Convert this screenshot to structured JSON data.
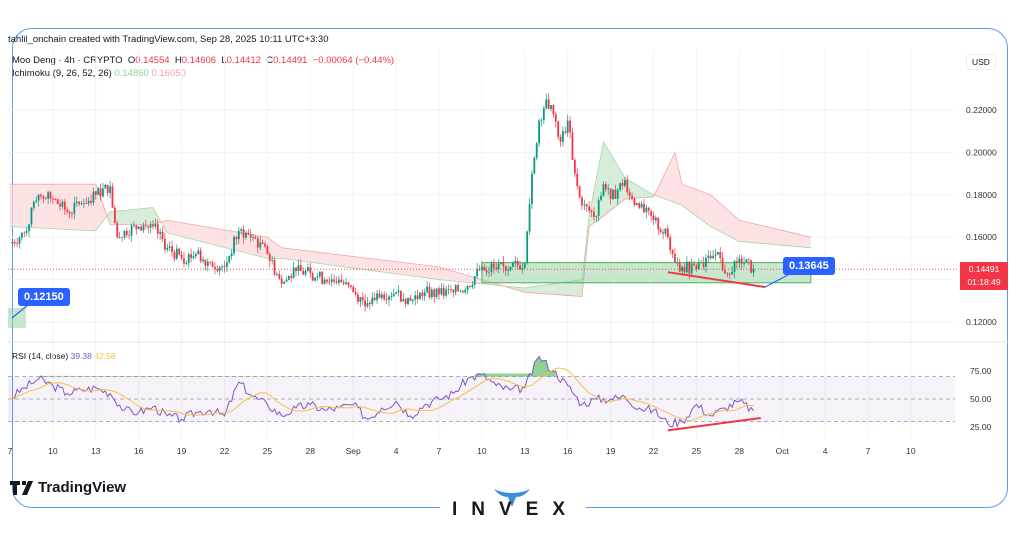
{
  "header": {
    "credit": "tahlil_onchain created with TradingView.com, Sep 28, 2025 10:11 UTC+3:30",
    "symbol": "Moo Deng · 4h · CRYPTO",
    "o_label": "O",
    "o": "0.14554",
    "h_label": "H",
    "h": "0.14606",
    "l_label": "L",
    "l": "0.14412",
    "c_label": "C",
    "c": "0.14491",
    "change": "−0.00064 (−0.44%)",
    "ichimoku": "Ichimoku (9, 26, 52, 26)",
    "ichimoku_v1": "0.14860",
    "ichimoku_v2": "0.16050",
    "rsi": "RSI (14, close)",
    "rsi_v1": "39.38",
    "rsi_v2": "42.58"
  },
  "axis": {
    "currency": "USD",
    "price_ticks": [
      "0.22000",
      "0.20000",
      "0.18000",
      "0.16000",
      "0.12000"
    ],
    "rsi_ticks": [
      "75.00",
      "50.00",
      "25.00"
    ],
    "last_price": "0.14491",
    "countdown": "01:18:49",
    "x_ticks": [
      "7",
      "10",
      "13",
      "16",
      "19",
      "22",
      "25",
      "28",
      "Sep",
      "4",
      "7",
      "10",
      "13",
      "16",
      "19",
      "22",
      "25",
      "28",
      "Oct",
      "4",
      "7",
      "10"
    ]
  },
  "callouts": {
    "left": "0.12150",
    "right": "0.13645"
  },
  "branding": {
    "tradingview": "TradingView",
    "invex": "INVEX"
  },
  "colors": {
    "up": "#089981",
    "down": "#f23645",
    "rsi": "#7e57c2",
    "rsi_ma": "#f5c242",
    "cloud_bull": "#c8e6c9",
    "cloud_bear": "#fcd6d9",
    "drawing": "#2962ff",
    "trendline": "#f23645",
    "zone": "#8fd19e"
  },
  "chart_data": [
    {
      "type": "candlestick",
      "title": "Moo Deng · 4h · CRYPTO",
      "ylim": [
        0.11,
        0.24
      ],
      "grid": true,
      "close_daily": [
        [
          "Aug 7",
          0.157
        ],
        [
          "Aug 8",
          0.162
        ],
        [
          "Aug 9",
          0.18
        ],
        [
          "Aug 10",
          0.178
        ],
        [
          "Aug 11",
          0.172
        ],
        [
          "Aug 12",
          0.176
        ],
        [
          "Aug 13",
          0.18
        ],
        [
          "Aug 14",
          0.184
        ],
        [
          "Aug 14.5",
          0.16
        ],
        [
          "Aug 15",
          0.163
        ],
        [
          "Aug 16",
          0.165
        ],
        [
          "Aug 17",
          0.165
        ],
        [
          "Aug 18",
          0.155
        ],
        [
          "Aug 19",
          0.15
        ],
        [
          "Aug 20",
          0.152
        ],
        [
          "Aug 21",
          0.148
        ],
        [
          "Aug 22",
          0.146
        ],
        [
          "Aug 23",
          0.163
        ],
        [
          "Aug 24",
          0.16
        ],
        [
          "Aug 25",
          0.152
        ],
        [
          "Aug 26",
          0.138
        ],
        [
          "Aug 27",
          0.144
        ],
        [
          "Aug 28",
          0.143
        ],
        [
          "Aug 29",
          0.14
        ],
        [
          "Aug 30",
          0.14
        ],
        [
          "Aug 31",
          0.134
        ],
        [
          "Sep 1",
          0.129
        ],
        [
          "Sep 2",
          0.133
        ],
        [
          "Sep 3",
          0.134
        ],
        [
          "Sep 4",
          0.13
        ],
        [
          "Sep 5",
          0.134
        ],
        [
          "Sep 6",
          0.133
        ],
        [
          "Sep 7",
          0.134
        ],
        [
          "Sep 8",
          0.137
        ],
        [
          "Sep 9",
          0.146
        ],
        [
          "Sep 10",
          0.145
        ],
        [
          "Sep 11",
          0.146
        ],
        [
          "Sep 12",
          0.148
        ],
        [
          "Sep 12.5",
          0.19
        ],
        [
          "Sep 13",
          0.215
        ],
        [
          "Sep 13.5",
          0.225
        ],
        [
          "Sep 14",
          0.218
        ],
        [
          "Sep 14.5",
          0.205
        ],
        [
          "Sep 15",
          0.215
        ],
        [
          "Sep 15.5",
          0.19
        ],
        [
          "Sep 16",
          0.175
        ],
        [
          "Sep 17",
          0.17
        ],
        [
          "Sep 17.5",
          0.185
        ],
        [
          "Sep 18",
          0.178
        ],
        [
          "Sep 19",
          0.187
        ],
        [
          "Sep 19.5",
          0.178
        ],
        [
          "Sep 20",
          0.174
        ],
        [
          "Sep 21",
          0.168
        ],
        [
          "Sep 22",
          0.16
        ],
        [
          "Sep 22.5",
          0.148
        ],
        [
          "Sep 23",
          0.146
        ],
        [
          "Sep 24",
          0.145
        ],
        [
          "Sep 25",
          0.15
        ],
        [
          "Sep 25.5",
          0.153
        ],
        [
          "Sep 26",
          0.143
        ],
        [
          "Sep 27",
          0.15
        ],
        [
          "Sep 28",
          0.1449
        ]
      ],
      "ichimoku_cloud": {
        "span_a": [
          [
            "Aug 7",
            0.165
          ],
          [
            "Aug 13",
            0.163
          ],
          [
            "Aug 14",
            0.172
          ],
          [
            "Aug 17",
            0.174
          ],
          [
            "Aug 18",
            0.162
          ],
          [
            "Aug 25",
            0.15
          ],
          [
            "Aug 26",
            0.15
          ],
          [
            "Sep 6",
            0.14
          ],
          [
            "Sep 12",
            0.136
          ],
          [
            "Sep 16",
            0.14
          ],
          [
            "Sep 16.5",
            0.17
          ],
          [
            "Sep 17.5",
            0.205
          ],
          [
            "Sep 19",
            0.188
          ],
          [
            "Sep 21",
            0.18
          ],
          [
            "Sep 23",
            0.175
          ],
          [
            "Sep 25",
            0.165
          ],
          [
            "Sep 27",
            0.158
          ],
          [
            "Oct 2",
            0.155
          ]
        ],
        "span_b": [
          [
            "Aug 7",
            0.185
          ],
          [
            "Aug 13",
            0.185
          ],
          [
            "Aug 14",
            0.166
          ],
          [
            "Aug 17",
            0.166
          ],
          [
            "Aug 18",
            0.168
          ],
          [
            "Aug 25",
            0.16
          ],
          [
            "Aug 26",
            0.155
          ],
          [
            "Sep 6",
            0.146
          ],
          [
            "Sep 12",
            0.134
          ],
          [
            "Sep 16",
            0.132
          ],
          [
            "Sep 16.5",
            0.165
          ],
          [
            "Sep 17.5",
            0.17
          ],
          [
            "Sep 19",
            0.178
          ],
          [
            "Sep 21",
            0.179
          ],
          [
            "Sep 22.5",
            0.2
          ],
          [
            "Sep 23",
            0.185
          ],
          [
            "Sep 25",
            0.18
          ],
          [
            "Sep 27",
            0.168
          ],
          [
            "Oct 2",
            0.16
          ]
        ]
      },
      "support_zone": {
        "from": "Sep 9",
        "to": "Oct 2",
        "low": 0.1385,
        "high": 0.148
      },
      "trendline": [
        [
          "Sep 22",
          0.1435
        ],
        [
          "Sep 28.8",
          0.1365
        ]
      ],
      "current_price": 0.14491
    },
    {
      "type": "line",
      "title": "RSI (14, close)",
      "ylim": [
        10,
        100
      ],
      "bands": [
        30,
        50,
        70
      ],
      "rsi_daily": [
        [
          "Aug 7",
          50
        ],
        [
          "Aug 8",
          60
        ],
        [
          "Aug 9",
          68
        ],
        [
          "Aug 10",
          62
        ],
        [
          "Aug 11",
          55
        ],
        [
          "Aug 12",
          58
        ],
        [
          "Aug 13",
          60
        ],
        [
          "Aug 14",
          55
        ],
        [
          "Aug 15",
          40
        ],
        [
          "Aug 16",
          38
        ],
        [
          "Aug 17",
          43
        ],
        [
          "Aug 18",
          35
        ],
        [
          "Aug 19",
          32
        ],
        [
          "Aug 20",
          38
        ],
        [
          "Aug 21",
          40
        ],
        [
          "Aug 22",
          35
        ],
        [
          "Aug 23",
          65
        ],
        [
          "Aug 24",
          52
        ],
        [
          "Aug 25",
          45
        ],
        [
          "Aug 26",
          35
        ],
        [
          "Aug 27",
          42
        ],
        [
          "Aug 28",
          45
        ],
        [
          "Aug 29",
          40
        ],
        [
          "Aug 30",
          42
        ],
        [
          "Aug 31",
          45
        ],
        [
          "Sep 1",
          32
        ],
        [
          "Sep 2",
          42
        ],
        [
          "Sep 3",
          48
        ],
        [
          "Sep 4",
          35
        ],
        [
          "Sep 5",
          45
        ],
        [
          "Sep 6",
          50
        ],
        [
          "Sep 7",
          55
        ],
        [
          "Sep 8",
          68
        ],
        [
          "Sep 9",
          72
        ],
        [
          "Sep 10",
          62
        ],
        [
          "Sep 11",
          58
        ],
        [
          "Sep 12",
          60
        ],
        [
          "Sep 13",
          88
        ],
        [
          "Sep 14",
          75
        ],
        [
          "Sep 15",
          62
        ],
        [
          "Sep 16",
          45
        ],
        [
          "Sep 17",
          50
        ],
        [
          "Sep 18",
          50
        ],
        [
          "Sep 19",
          52
        ],
        [
          "Sep 20",
          42
        ],
        [
          "Sep 21",
          40
        ],
        [
          "Sep 22",
          28
        ],
        [
          "Sep 23",
          30
        ],
        [
          "Sep 24",
          45
        ],
        [
          "Sep 25",
          35
        ],
        [
          "Sep 26",
          42
        ],
        [
          "Sep 27",
          48
        ],
        [
          "Sep 28",
          39.4
        ]
      ],
      "trendline": [
        [
          "Sep 22",
          22
        ],
        [
          "Sep 28.5",
          33
        ]
      ]
    }
  ]
}
